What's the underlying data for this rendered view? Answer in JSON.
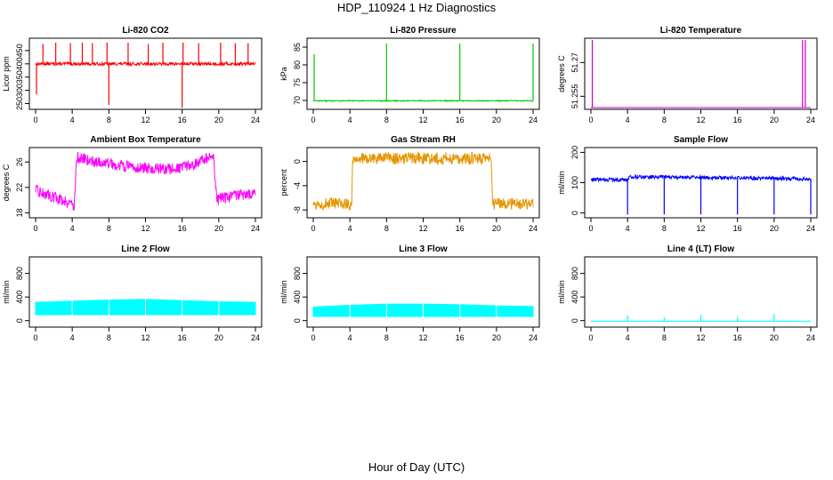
{
  "title": "HDP_110924  1 Hz Diagnostics",
  "xlabel": "Hour of Day (UTC)",
  "chart_data": [
    {
      "id": "co2",
      "type": "line",
      "title": "Li-820 CO2",
      "ylabel": "Licor ppm",
      "color": "#ff0000",
      "xlim": [
        0,
        24
      ],
      "xticks": [
        0,
        4,
        8,
        12,
        16,
        20,
        24
      ],
      "ylim": [
        235,
        490
      ],
      "yticks": [
        250,
        300,
        350,
        400,
        450
      ],
      "baseline": 400,
      "noise": 6,
      "features": [
        {
          "kind": "spike",
          "x": 0.1,
          "y": 285
        },
        {
          "kind": "spike",
          "x": 8.0,
          "y": 245
        },
        {
          "kind": "spike",
          "x": 16.0,
          "y": 235
        },
        {
          "kind": "spike",
          "x": 0.8,
          "y": 475
        },
        {
          "kind": "spike",
          "x": 2.2,
          "y": 480
        },
        {
          "kind": "spike",
          "x": 3.8,
          "y": 478
        },
        {
          "kind": "spike",
          "x": 5.1,
          "y": 480
        },
        {
          "kind": "spike",
          "x": 6.2,
          "y": 478
        },
        {
          "kind": "spike",
          "x": 7.8,
          "y": 480
        },
        {
          "kind": "spike",
          "x": 10.1,
          "y": 480
        },
        {
          "kind": "spike",
          "x": 12.3,
          "y": 475
        },
        {
          "kind": "spike",
          "x": 13.9,
          "y": 480
        },
        {
          "kind": "spike",
          "x": 16.1,
          "y": 480
        },
        {
          "kind": "spike",
          "x": 17.8,
          "y": 478
        },
        {
          "kind": "spike",
          "x": 20.2,
          "y": 480
        },
        {
          "kind": "spike",
          "x": 21.8,
          "y": 478
        },
        {
          "kind": "spike",
          "x": 23.2,
          "y": 478
        }
      ]
    },
    {
      "id": "pressure",
      "type": "line",
      "title": "Li-820 Pressure",
      "ylabel": "kPa",
      "color": "#00cc00",
      "xlim": [
        0,
        24
      ],
      "xticks": [
        0,
        4,
        8,
        12,
        16,
        20,
        24
      ],
      "ylim": [
        68,
        87
      ],
      "yticks": [
        70,
        75,
        80,
        85
      ],
      "baseline": 69.9,
      "noise": 0.15,
      "features": [
        {
          "kind": "spike",
          "x": 0.1,
          "y": 83
        },
        {
          "kind": "spike",
          "x": 8.0,
          "y": 86
        },
        {
          "kind": "spike",
          "x": 16.0,
          "y": 86
        },
        {
          "kind": "spike",
          "x": 24.0,
          "y": 86
        }
      ]
    },
    {
      "id": "licor-temp",
      "type": "line",
      "title": "Li-820 Temperature",
      "ylabel": "degrees C",
      "color": "#cc00cc",
      "xlim": [
        0,
        24
      ],
      "xticks": [
        0,
        4,
        8,
        12,
        16,
        20,
        24
      ],
      "ylim": [
        51.25,
        51.28
      ],
      "yticks": [
        51.255,
        51.27
      ],
      "baseline": 51.25,
      "noise": 0,
      "features": [
        {
          "kind": "spike",
          "x": 0.15,
          "y": 51.28
        },
        {
          "kind": "spike",
          "x": 23.1,
          "y": 51.28
        },
        {
          "kind": "spike",
          "x": 23.4,
          "y": 51.28
        }
      ]
    },
    {
      "id": "box-temp",
      "type": "line",
      "title": "Ambient Box Temperature",
      "ylabel": "degrees C",
      "color": "#ff00ff",
      "xlim": [
        0,
        24
      ],
      "xticks": [
        0,
        4,
        8,
        12,
        16,
        20,
        24
      ],
      "ylim": [
        17.5,
        28
      ],
      "yticks": [
        18,
        22,
        26
      ],
      "x": [
        0,
        2,
        4,
        4.2,
        4.5,
        6,
        10,
        14,
        16,
        18,
        19,
        19.4,
        19.8,
        20.2,
        22,
        24
      ],
      "y": [
        21.5,
        20.5,
        19.5,
        18.8,
        26.8,
        26.2,
        25.3,
        24.8,
        25.0,
        26.0,
        26.8,
        27.0,
        20.0,
        20.2,
        20.8,
        21.0
      ],
      "noise": 0.9
    },
    {
      "id": "rh",
      "type": "line",
      "title": "Gas Stream RH",
      "ylabel": "percent",
      "color": "#e69500",
      "xlim": [
        0,
        24
      ],
      "xticks": [
        0,
        4,
        8,
        12,
        16,
        20,
        24
      ],
      "ylim": [
        -9,
        2
      ],
      "yticks": [
        -8,
        -4,
        0
      ],
      "x": [
        0,
        4.2,
        4.3,
        19.4,
        19.6,
        24
      ],
      "y": [
        -7.0,
        -7.0,
        0.5,
        0.5,
        -7.0,
        -7.0
      ],
      "noise": 1.0
    },
    {
      "id": "sample-flow",
      "type": "line",
      "title": "Sample Flow",
      "ylabel": "ml/min",
      "color": "#0000ff",
      "xlim": [
        0,
        24
      ],
      "xticks": [
        0,
        4,
        8,
        12,
        16,
        20,
        24
      ],
      "ylim": [
        -10,
        210
      ],
      "yticks": [
        0,
        100,
        200
      ],
      "x": [
        0,
        4,
        4.3,
        24
      ],
      "y": [
        110,
        110,
        120,
        112
      ],
      "noise": 6,
      "features": [
        {
          "kind": "spike",
          "x": 4.0,
          "y": -5
        },
        {
          "kind": "spike",
          "x": 8.0,
          "y": -5
        },
        {
          "kind": "spike",
          "x": 12.0,
          "y": -5
        },
        {
          "kind": "spike",
          "x": 16.0,
          "y": -5
        },
        {
          "kind": "spike",
          "x": 20.0,
          "y": -5
        },
        {
          "kind": "spike",
          "x": 24.0,
          "y": -5
        }
      ]
    },
    {
      "id": "line2-flow",
      "type": "line",
      "title": "Line 2 Flow",
      "ylabel": "ml/min",
      "color": "#00ffff",
      "xlim": [
        0,
        24
      ],
      "xticks": [
        0,
        4,
        8,
        12,
        16,
        20,
        24
      ],
      "ylim": [
        -80,
        1050
      ],
      "yticks": [
        0,
        400,
        800
      ],
      "lower": 100,
      "x": [
        0,
        4,
        8,
        12,
        16,
        20,
        24
      ],
      "y": [
        310,
        330,
        350,
        360,
        340,
        320,
        310
      ]
    },
    {
      "id": "line3-flow",
      "type": "line",
      "title": "Line 3 Flow",
      "ylabel": "ml/min",
      "color": "#00ffff",
      "xlim": [
        0,
        24
      ],
      "xticks": [
        0,
        4,
        8,
        12,
        16,
        20,
        24
      ],
      "ylim": [
        -80,
        1050
      ],
      "yticks": [
        0,
        400,
        800
      ],
      "lower": 70,
      "x": [
        0,
        4,
        8,
        12,
        16,
        20,
        24
      ],
      "y": [
        230,
        260,
        280,
        280,
        270,
        250,
        240
      ]
    },
    {
      "id": "line4-flow",
      "type": "line",
      "title": "Line 4 (LT) Flow",
      "ylabel": "ml/min",
      "color": "#00ffff",
      "xlim": [
        0,
        24
      ],
      "xticks": [
        0,
        4,
        8,
        12,
        16,
        20,
        24
      ],
      "ylim": [
        -80,
        1050
      ],
      "yticks": [
        0,
        400,
        800
      ],
      "baseline": -10,
      "noise": 3,
      "features": [
        {
          "kind": "spike",
          "x": 4.0,
          "y": 90
        },
        {
          "kind": "spike",
          "x": 8.0,
          "y": 60
        },
        {
          "kind": "spike",
          "x": 12.0,
          "y": 100
        },
        {
          "kind": "spike",
          "x": 16.0,
          "y": 60
        },
        {
          "kind": "spike",
          "x": 20.0,
          "y": 110
        }
      ]
    }
  ]
}
